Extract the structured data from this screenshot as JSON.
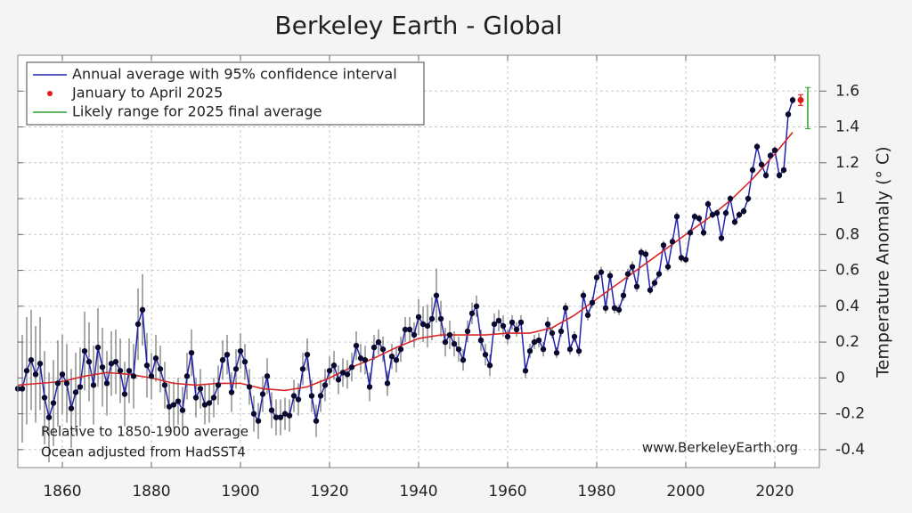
{
  "chart_data": {
    "type": "line",
    "title": "Berkeley Earth - Global",
    "y_label": "Temperature Anomaly (° C)",
    "xlim": [
      1850,
      2030
    ],
    "ylim": [
      -0.5,
      1.8
    ],
    "xticks": [
      1860,
      1880,
      1900,
      1920,
      1940,
      1960,
      1980,
      2000,
      2020
    ],
    "yticks": [
      -0.4,
      -0.2,
      0,
      0.2,
      0.4,
      0.6,
      0.8,
      1,
      1.2,
      1.4,
      1.6
    ],
    "grid": true,
    "legend": "upper left",
    "series": [
      {
        "name": "Annual average with 95% confidence interval",
        "color": "#2323b0",
        "marker_color": "#0a0a30",
        "error_color": "#555555",
        "x": [
          1850,
          1851,
          1852,
          1853,
          1854,
          1855,
          1856,
          1857,
          1858,
          1859,
          1860,
          1861,
          1862,
          1863,
          1864,
          1865,
          1866,
          1867,
          1868,
          1869,
          1870,
          1871,
          1872,
          1873,
          1874,
          1875,
          1876,
          1877,
          1878,
          1879,
          1880,
          1881,
          1882,
          1883,
          1884,
          1885,
          1886,
          1887,
          1888,
          1889,
          1890,
          1891,
          1892,
          1893,
          1894,
          1895,
          1896,
          1897,
          1898,
          1899,
          1900,
          1901,
          1902,
          1903,
          1904,
          1905,
          1906,
          1907,
          1908,
          1909,
          1910,
          1911,
          1912,
          1913,
          1914,
          1915,
          1916,
          1917,
          1918,
          1919,
          1920,
          1921,
          1922,
          1923,
          1924,
          1925,
          1926,
          1927,
          1928,
          1929,
          1930,
          1931,
          1932,
          1933,
          1934,
          1935,
          1936,
          1937,
          1938,
          1939,
          1940,
          1941,
          1942,
          1943,
          1944,
          1945,
          1946,
          1947,
          1948,
          1949,
          1950,
          1951,
          1952,
          1953,
          1954,
          1955,
          1956,
          1957,
          1958,
          1959,
          1960,
          1961,
          1962,
          1963,
          1964,
          1965,
          1966,
          1967,
          1968,
          1969,
          1970,
          1971,
          1972,
          1973,
          1974,
          1975,
          1976,
          1977,
          1978,
          1979,
          1980,
          1981,
          1982,
          1983,
          1984,
          1985,
          1986,
          1987,
          1988,
          1989,
          1990,
          1991,
          1992,
          1993,
          1994,
          1995,
          1996,
          1997,
          1998,
          1999,
          2000,
          2001,
          2002,
          2003,
          2004,
          2005,
          2006,
          2007,
          2008,
          2009,
          2010,
          2011,
          2012,
          2013,
          2014,
          2015,
          2016,
          2017,
          2018,
          2019,
          2020,
          2021,
          2022,
          2023,
          2024
        ],
        "values": [
          -0.06,
          -0.06,
          0.04,
          0.1,
          0.02,
          0.08,
          -0.11,
          -0.22,
          -0.14,
          -0.03,
          0.02,
          -0.03,
          -0.17,
          -0.08,
          -0.05,
          0.15,
          0.09,
          -0.04,
          0.17,
          0.06,
          -0.03,
          0.08,
          0.09,
          0.04,
          -0.09,
          0.04,
          0.01,
          0.3,
          0.38,
          0.07,
          0.01,
          0.11,
          0.05,
          -0.04,
          -0.16,
          -0.15,
          -0.13,
          -0.18,
          0.01,
          0.14,
          -0.11,
          -0.06,
          -0.15,
          -0.14,
          -0.11,
          -0.04,
          0.1,
          0.13,
          -0.08,
          0.05,
          0.15,
          0.09,
          -0.05,
          -0.2,
          -0.24,
          -0.09,
          0.01,
          -0.18,
          -0.22,
          -0.22,
          -0.2,
          -0.21,
          -0.1,
          -0.12,
          0.05,
          0.13,
          -0.1,
          -0.24,
          -0.1,
          -0.04,
          0.04,
          0.07,
          -0.01,
          0.03,
          0.02,
          0.06,
          0.18,
          0.11,
          0.1,
          -0.05,
          0.17,
          0.2,
          0.16,
          -0.03,
          0.12,
          0.1,
          0.16,
          0.27,
          0.27,
          0.24,
          0.34,
          0.3,
          0.29,
          0.33,
          0.46,
          0.33,
          0.2,
          0.24,
          0.19,
          0.16,
          0.1,
          0.26,
          0.36,
          0.4,
          0.21,
          0.13,
          0.07,
          0.3,
          0.32,
          0.29,
          0.23,
          0.31,
          0.27,
          0.31,
          0.04,
          0.15,
          0.2,
          0.21,
          0.16,
          0.3,
          0.25,
          0.14,
          0.26,
          0.39,
          0.16,
          0.23,
          0.15,
          0.46,
          0.35,
          0.42,
          0.56,
          0.59,
          0.39,
          0.57,
          0.39,
          0.38,
          0.46,
          0.58,
          0.62,
          0.51,
          0.7,
          0.69,
          0.49,
          0.53,
          0.58,
          0.74,
          0.62,
          0.76,
          0.9,
          0.67,
          0.66,
          0.81,
          0.9,
          0.89,
          0.81,
          0.97,
          0.91,
          0.92,
          0.78,
          0.92,
          1.0,
          0.87,
          0.91,
          0.93,
          1.0,
          1.16,
          1.29,
          1.19,
          1.13,
          1.24,
          1.27,
          1.13,
          1.16,
          1.47,
          1.55
        ],
        "errors": [
          0.28,
          0.3,
          0.3,
          0.28,
          0.27,
          0.26,
          0.26,
          0.25,
          0.24,
          0.24,
          0.22,
          0.22,
          0.22,
          0.22,
          0.22,
          0.22,
          0.22,
          0.22,
          0.22,
          0.22,
          0.18,
          0.18,
          0.18,
          0.18,
          0.18,
          0.18,
          0.18,
          0.2,
          0.2,
          0.18,
          0.13,
          0.13,
          0.13,
          0.13,
          0.13,
          0.13,
          0.13,
          0.13,
          0.13,
          0.13,
          0.11,
          0.11,
          0.11,
          0.11,
          0.11,
          0.11,
          0.11,
          0.11,
          0.11,
          0.11,
          0.1,
          0.1,
          0.1,
          0.1,
          0.1,
          0.1,
          0.1,
          0.1,
          0.1,
          0.1,
          0.09,
          0.09,
          0.09,
          0.09,
          0.09,
          0.09,
          0.09,
          0.09,
          0.09,
          0.09,
          0.08,
          0.08,
          0.08,
          0.08,
          0.08,
          0.08,
          0.08,
          0.08,
          0.08,
          0.08,
          0.07,
          0.07,
          0.07,
          0.07,
          0.07,
          0.07,
          0.07,
          0.07,
          0.07,
          0.07,
          0.1,
          0.1,
          0.12,
          0.12,
          0.15,
          0.1,
          0.08,
          0.08,
          0.07,
          0.07,
          0.06,
          0.06,
          0.06,
          0.06,
          0.06,
          0.06,
          0.06,
          0.06,
          0.06,
          0.06,
          0.04,
          0.04,
          0.04,
          0.04,
          0.04,
          0.04,
          0.04,
          0.04,
          0.04,
          0.04,
          0.03,
          0.03,
          0.03,
          0.03,
          0.03,
          0.03,
          0.03,
          0.03,
          0.03,
          0.03,
          0.03,
          0.03,
          0.03,
          0.03,
          0.03,
          0.03,
          0.03,
          0.03,
          0.03,
          0.03,
          0.025,
          0.025,
          0.025,
          0.025,
          0.025,
          0.025,
          0.025,
          0.025,
          0.025,
          0.025,
          0.02,
          0.02,
          0.02,
          0.02,
          0.02,
          0.02,
          0.02,
          0.02,
          0.02,
          0.02,
          0.02,
          0.02,
          0.02,
          0.02,
          0.02,
          0.02,
          0.02,
          0.02,
          0.02,
          0.02,
          0.02,
          0.02,
          0.02,
          0.02,
          0.02
        ]
      },
      {
        "name": "January to April 2025",
        "color": "#e31a1c",
        "values": [
          1.55
        ],
        "errors": [
          0.03
        ]
      },
      {
        "name": "Likely range for 2025 final average",
        "color": "#2ca02c",
        "low": [
          1.39
        ],
        "high": [
          1.62
        ]
      }
    ],
    "trend": {
      "color": "#d62728",
      "x": [
        1850,
        1855,
        1860,
        1865,
        1870,
        1875,
        1880,
        1885,
        1890,
        1895,
        1900,
        1905,
        1910,
        1915,
        1920,
        1925,
        1930,
        1935,
        1940,
        1945,
        1950,
        1955,
        1960,
        1965,
        1970,
        1975,
        1980,
        1985,
        1990,
        1995,
        2000,
        2005,
        2010,
        2015,
        2020,
        2024
      ],
      "values": [
        -0.04,
        -0.03,
        -0.02,
        0.01,
        0.03,
        0.02,
        0.0,
        -0.03,
        -0.04,
        -0.03,
        -0.03,
        -0.06,
        -0.07,
        -0.05,
        0.0,
        0.06,
        0.11,
        0.17,
        0.22,
        0.24,
        0.24,
        0.24,
        0.25,
        0.25,
        0.28,
        0.35,
        0.44,
        0.53,
        0.62,
        0.71,
        0.8,
        0.89,
        0.99,
        1.11,
        1.25,
        1.37
      ]
    },
    "annotations": [
      "Relative to 1850-1900 average",
      "Ocean adjusted from HadSST4",
      "www.BerkeleyEarth.org"
    ]
  }
}
